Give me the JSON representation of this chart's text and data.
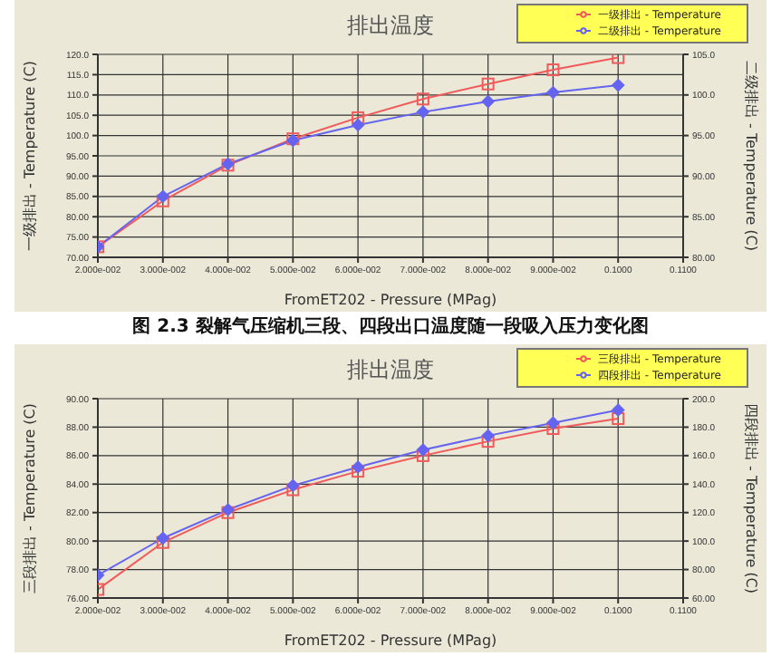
{
  "chart_data": [
    {
      "type": "line",
      "title": "排出温度",
      "xlabel": "FromET202 - Pressure (MPag)",
      "ylabel": "一级排出 - Temperature (C)",
      "y2label": "二级排出 - Temperature (C)",
      "annotations": [
        "图 2.3 裂解气压缩机三段、四段出口温度随一段吸入压力变化图"
      ],
      "x": [
        0.02,
        0.03,
        0.04,
        0.05,
        0.06,
        0.07,
        0.08,
        0.09,
        0.1
      ],
      "series": [
        {
          "name": "一级排出 - Temperature",
          "color": "#f05a5a",
          "marker": "square",
          "values": [
            72.6,
            83.9,
            92.7,
            99.2,
            104.4,
            109.0,
            112.7,
            116.2,
            119.2
          ]
        },
        {
          "name": "二级排出 - Temperature",
          "color": "#6464f0",
          "marker": "diamond",
          "axis": "y2",
          "values": [
            81.3,
            87.5,
            91.5,
            94.4,
            96.3,
            97.9,
            99.2,
            100.3,
            101.2
          ]
        }
      ],
      "xlim": [
        0.02,
        0.11
      ],
      "xticks": [
        {
          "value": 0.02,
          "label": "2.000e-002"
        },
        {
          "value": 0.03,
          "label": "3.000e-002"
        },
        {
          "value": 0.04,
          "label": "4.000e-002"
        },
        {
          "value": 0.05,
          "label": "5.000e-002"
        },
        {
          "value": 0.06,
          "label": "6.000e-002"
        },
        {
          "value": 0.07,
          "label": "7.000e-002"
        },
        {
          "value": 0.08,
          "label": "8.000e-002"
        },
        {
          "value": 0.09,
          "label": "9.000e-002"
        },
        {
          "value": 0.1,
          "label": "0.1000"
        },
        {
          "value": 0.11,
          "label": "0.1100"
        }
      ],
      "ylim": [
        70,
        120
      ],
      "yticks": [
        {
          "value": 70,
          "label": "70.00"
        },
        {
          "value": 75,
          "label": "75.00"
        },
        {
          "value": 80,
          "label": "80.00"
        },
        {
          "value": 85,
          "label": "85.00"
        },
        {
          "value": 90,
          "label": "90.00"
        },
        {
          "value": 95,
          "label": "95.00"
        },
        {
          "value": 100,
          "label": "100.0"
        },
        {
          "value": 105,
          "label": "105.0"
        },
        {
          "value": 110,
          "label": "110.0"
        },
        {
          "value": 115,
          "label": "115.0"
        },
        {
          "value": 120,
          "label": "120.0"
        }
      ],
      "y2lim": [
        80,
        105
      ],
      "y2ticks": [
        {
          "value": 80,
          "label": "80.00"
        },
        {
          "value": 85,
          "label": "85.00"
        },
        {
          "value": 90,
          "label": "90.00"
        },
        {
          "value": 95,
          "label": "95.00"
        },
        {
          "value": 100,
          "label": "100.0"
        },
        {
          "value": 105,
          "label": "105.0"
        }
      ],
      "grid": true,
      "legend": "top right"
    },
    {
      "type": "line",
      "title": "排出温度",
      "xlabel": "FromET202 - Pressure (MPag)",
      "ylabel": "三段排出 - Temperature (C)",
      "y2label": "四段排出 - Temperature (C)",
      "x": [
        0.02,
        0.03,
        0.04,
        0.05,
        0.06,
        0.07,
        0.08,
        0.09,
        0.1
      ],
      "series": [
        {
          "name": "三段排出 - Temperature",
          "color": "#f05a5a",
          "marker": "square",
          "values": [
            76.6,
            79.9,
            82.0,
            83.6,
            84.9,
            86.0,
            87.0,
            87.9,
            88.6
          ]
        },
        {
          "name": "四段排出 - Temperature",
          "color": "#6464f0",
          "marker": "diamond",
          "axis": "y2",
          "values": [
            76,
            102,
            122,
            139,
            152,
            164,
            174,
            183,
            192
          ]
        }
      ],
      "xlim": [
        0.02,
        0.11
      ],
      "xticks": [
        {
          "value": 0.02,
          "label": "2.000e-002"
        },
        {
          "value": 0.03,
          "label": "3.000e-002"
        },
        {
          "value": 0.04,
          "label": "4.000e-002"
        },
        {
          "value": 0.05,
          "label": "5.000e-002"
        },
        {
          "value": 0.06,
          "label": "6.000e-002"
        },
        {
          "value": 0.07,
          "label": "7.000e-002"
        },
        {
          "value": 0.08,
          "label": "8.000e-002"
        },
        {
          "value": 0.09,
          "label": "9.000e-002"
        },
        {
          "value": 0.1,
          "label": "0.1000"
        },
        {
          "value": 0.11,
          "label": "0.1100"
        }
      ],
      "ylim": [
        76,
        90
      ],
      "yticks": [
        {
          "value": 76,
          "label": "76.00"
        },
        {
          "value": 78,
          "label": "78.00"
        },
        {
          "value": 80,
          "label": "80.00"
        },
        {
          "value": 82,
          "label": "82.00"
        },
        {
          "value": 84,
          "label": "84.00"
        },
        {
          "value": 86,
          "label": "86.00"
        },
        {
          "value": 88,
          "label": "88.00"
        },
        {
          "value": 90,
          "label": "90.00"
        }
      ],
      "y2lim": [
        60,
        200
      ],
      "y2ticks": [
        {
          "value": 60,
          "label": "60.00"
        },
        {
          "value": 80,
          "label": "80.00"
        },
        {
          "value": 100,
          "label": "100.0"
        },
        {
          "value": 120,
          "label": "120.0"
        },
        {
          "value": 140,
          "label": "140.0"
        },
        {
          "value": 160,
          "label": "160.0"
        },
        {
          "value": 180,
          "label": "180.0"
        },
        {
          "value": 200,
          "label": "200.0"
        }
      ],
      "grid": true,
      "legend": "top right"
    }
  ]
}
